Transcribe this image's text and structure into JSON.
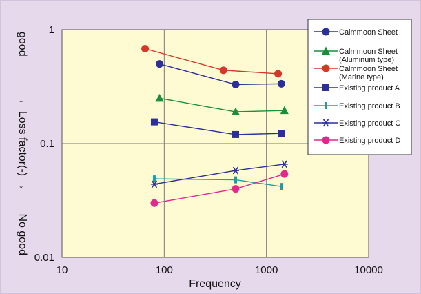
{
  "chart_data": {
    "type": "scatter",
    "title": "",
    "xlabel": "Frequency",
    "ylabel": "Loss factor(-)",
    "ylabel_good": "good",
    "ylabel_nogood": "No good",
    "x_scale": "log",
    "y_scale": "log",
    "xlim": [
      10,
      10000
    ],
    "ylim": [
      0.01,
      1
    ],
    "x_ticks": [
      "10",
      "100",
      "1000",
      "10000"
    ],
    "y_ticks": [
      "0.01",
      "0.1",
      "1"
    ],
    "grid": true,
    "legend_position": "top-right",
    "colors": {
      "background": "#e6d9ec",
      "plot_area": "#fefbd2",
      "grid": "#7a7a7a"
    },
    "series": [
      {
        "name": "Calmmoon Sheet",
        "marker": "circle",
        "color": "#2b2f9a",
        "x": [
          90,
          500,
          1400
        ],
        "y": [
          0.5,
          0.33,
          0.335
        ]
      },
      {
        "name": "Calmmoon Sheet (Aluminum type)",
        "marker": "triangle",
        "color": "#1a8f3a",
        "x": [
          90,
          500,
          1500
        ],
        "y": [
          0.25,
          0.19,
          0.195
        ]
      },
      {
        "name": "Calmmoon Sheet (Marine type)",
        "marker": "circle",
        "color": "#d8362b",
        "x": [
          65,
          380,
          1300
        ],
        "y": [
          0.68,
          0.44,
          0.41
        ]
      },
      {
        "name": "Existing product A",
        "marker": "square",
        "color": "#2b2f9a",
        "x": [
          80,
          500,
          1400
        ],
        "y": [
          0.155,
          0.12,
          0.123
        ]
      },
      {
        "name": "Existing product B",
        "marker": "bar",
        "color": "#1aa0a0",
        "x": [
          80,
          500,
          1400
        ],
        "y": [
          0.049,
          0.048,
          0.042
        ]
      },
      {
        "name": "Existing product C",
        "marker": "asterisk",
        "color": "#2b2f9a",
        "x": [
          80,
          500,
          1500
        ],
        "y": [
          0.044,
          0.058,
          0.066
        ]
      },
      {
        "name": "Existing product D",
        "marker": "circle",
        "color": "#e2288c",
        "x": [
          80,
          500,
          1500
        ],
        "y": [
          0.03,
          0.04,
          0.054
        ]
      }
    ],
    "legend_lines": [
      [
        "Calmmoon Sheet"
      ],
      [
        "Calmmoon Sheet",
        "(Aluminum type)"
      ],
      [
        "Calmmoon Sheet",
        "(Marine type)"
      ],
      [
        "Existing product A"
      ],
      [
        "Existing product B"
      ],
      [
        "Existing product C"
      ],
      [
        "Existing product D"
      ]
    ]
  }
}
